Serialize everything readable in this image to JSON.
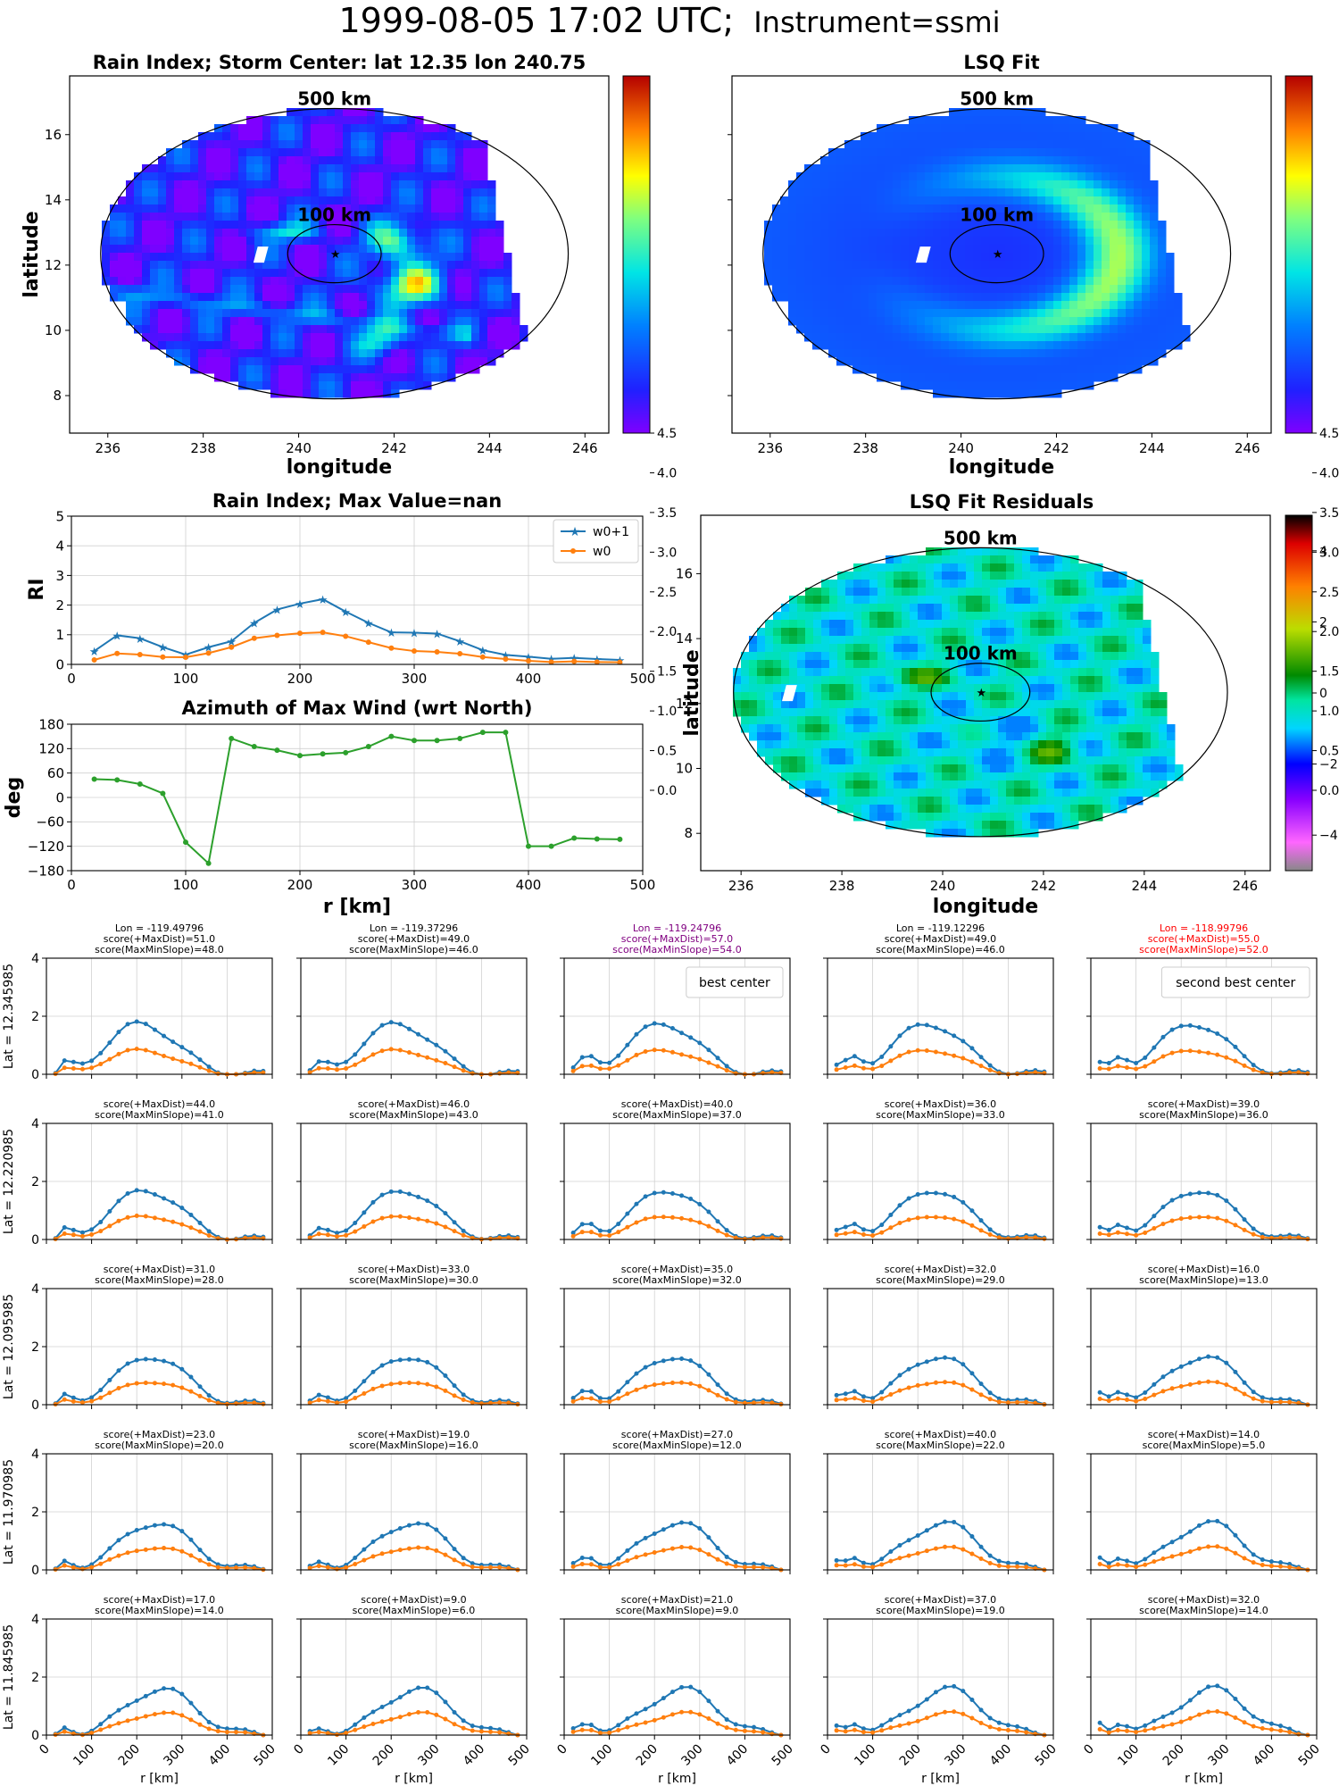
{
  "figure": {
    "title_main": "1999-08-05 17:02 UTC;",
    "title_sub": "Instrument=ssmi"
  },
  "maps": {
    "rain_index": {
      "title": "Rain Index; Storm Center: lat 12.35 lon 240.75",
      "xlabel": "longitude",
      "ylabel": "latitude",
      "show_yticklabels": true,
      "circle_labels": [
        "500 km",
        "100 km"
      ],
      "xticks": [
        "236",
        "238",
        "240",
        "242",
        "244",
        "246"
      ],
      "yticks": [
        "8",
        "10",
        "12",
        "14",
        "16"
      ],
      "colorbar_ticks": [
        "0.0",
        "0.5",
        "1.0",
        "1.5",
        "2.0",
        "2.5",
        "3.0",
        "3.5",
        "4.0",
        "4.5"
      ],
      "colormap": "jet",
      "storm_center": {
        "lon": 240.75,
        "lat": 12.35
      }
    },
    "lsq_fit": {
      "title": "LSQ Fit",
      "xlabel": "longitude",
      "ylabel": "",
      "show_yticklabels": false,
      "circle_labels": [
        "500 km",
        "100 km"
      ],
      "xticks": [
        "236",
        "238",
        "240",
        "242",
        "244",
        "246"
      ],
      "colorbar_ticks": [
        "0.0",
        "0.5",
        "1.0",
        "1.5",
        "2.0",
        "2.5",
        "3.0",
        "3.5",
        "4.0",
        "4.5"
      ],
      "colormap": "jet"
    },
    "residuals": {
      "title": "LSQ Fit Residuals",
      "xlabel": "longitude",
      "ylabel": "latitude",
      "circle_labels": [
        "500 km",
        "100 km"
      ],
      "xticks": [
        "236",
        "238",
        "240",
        "242",
        "244",
        "246"
      ],
      "yticks": [
        "8",
        "10",
        "12",
        "14",
        "16"
      ],
      "colorbar_ticks": [
        "4",
        "2",
        "0",
        "−2",
        "−4"
      ],
      "colormap": "diverging"
    }
  },
  "chart_data": [
    {
      "type": "line",
      "title": "Rain Index; Max Value=nan",
      "ylabel": "RI",
      "xlabel": "",
      "xlim": [
        0,
        500
      ],
      "ylim": [
        0,
        5
      ],
      "grid": true,
      "legend_position": "top-right",
      "xticks": [
        "0",
        "100",
        "200",
        "300",
        "400",
        "500"
      ],
      "yticks": [
        "0",
        "1",
        "2",
        "3",
        "4",
        "5"
      ],
      "x": [
        20,
        40,
        60,
        80,
        100,
        120,
        140,
        160,
        180,
        200,
        220,
        240,
        260,
        280,
        300,
        320,
        340,
        360,
        380,
        400,
        420,
        440,
        460,
        480
      ],
      "series": [
        {
          "name": "w0+1",
          "color": "#1f77b4",
          "marker": "star",
          "values": [
            0.45,
            0.98,
            0.88,
            0.58,
            0.33,
            0.58,
            0.78,
            1.4,
            1.85,
            2.05,
            2.2,
            1.78,
            1.4,
            1.08,
            1.07,
            1.04,
            0.78,
            0.48,
            0.32,
            0.26,
            0.19,
            0.22,
            0.18,
            0.15
          ]
        },
        {
          "name": "w0",
          "color": "#ff7f0e",
          "marker": "dot",
          "values": [
            0.15,
            0.37,
            0.33,
            0.25,
            0.24,
            0.38,
            0.58,
            0.88,
            0.98,
            1.05,
            1.08,
            0.95,
            0.75,
            0.55,
            0.45,
            0.42,
            0.36,
            0.25,
            0.18,
            0.12,
            0.08,
            0.1,
            0.08,
            0.07
          ]
        }
      ]
    },
    {
      "type": "line",
      "title": "Azimuth of Max Wind (wrt North)",
      "ylabel": "deg",
      "xlabel": "r [km]",
      "xlim": [
        0,
        500
      ],
      "ylim": [
        -180,
        180
      ],
      "grid": true,
      "xticks": [
        "0",
        "100",
        "200",
        "300",
        "400",
        "500"
      ],
      "yticks": [
        "−180",
        "−120",
        "−60",
        "0",
        "60",
        "120",
        "180"
      ],
      "x": [
        20,
        40,
        60,
        80,
        100,
        120,
        140,
        160,
        180,
        200,
        220,
        240,
        260,
        280,
        300,
        320,
        340,
        360,
        380,
        400,
        420,
        440,
        460,
        480
      ],
      "series": [
        {
          "color": "#2ca02c",
          "values": [
            45,
            43,
            33,
            10,
            -110,
            -162,
            145,
            125,
            116,
            103,
            107,
            110,
            125,
            150,
            140,
            140,
            145,
            160,
            160,
            -120,
            -120,
            -100,
            -102,
            -103
          ]
        }
      ]
    },
    {
      "type": "line",
      "panel": "score-grid",
      "rows": 5,
      "cols": 5,
      "ylim": [
        0,
        5
      ],
      "xlim": [
        0,
        500
      ],
      "xticks": [
        "0",
        "100",
        "200",
        "300",
        "400",
        "500"
      ],
      "yticks": [
        "0",
        "2",
        "4"
      ],
      "xlabel": "r [km]",
      "row_labels": [
        "Lat = 12.345985",
        "Lat = 12.220985",
        "Lat = 12.095985",
        "Lat = 11.970985",
        "Lat = 11.845985"
      ],
      "subplots": [
        [
          {
            "lines": [
              "Lon = -119.49796",
              "score(+MaxDist)=51.0",
              "score(MaxMinSlope)=48.0"
            ],
            "color": "#000000",
            "legend": "",
            "variant": 0
          },
          {
            "lines": [
              "Lon = -119.37296",
              "score(+MaxDist)=49.0",
              "score(MaxMinSlope)=46.0"
            ],
            "color": "#000000",
            "legend": "",
            "variant": 1
          },
          {
            "lines": [
              "Lon = -119.24796",
              "score(+MaxDist)=57.0",
              "score(MaxMinSlope)=54.0"
            ],
            "color": "#800080",
            "legend": "best center",
            "variant": 2
          },
          {
            "lines": [
              "Lon = -119.12296",
              "score(+MaxDist)=49.0",
              "score(MaxMinSlope)=46.0"
            ],
            "color": "#000000",
            "legend": "",
            "variant": 3
          },
          {
            "lines": [
              "Lon = -118.99796",
              "score(+MaxDist)=55.0",
              "score(MaxMinSlope)=52.0"
            ],
            "color": "#ff0000",
            "legend": "second best center",
            "variant": 4
          }
        ],
        [
          {
            "lines": [
              "score(+MaxDist)=44.0",
              "score(MaxMinSlope)=41.0"
            ],
            "color": "#000000",
            "legend": "",
            "variant": 0
          },
          {
            "lines": [
              "score(+MaxDist)=46.0",
              "score(MaxMinSlope)=43.0"
            ],
            "color": "#000000",
            "legend": "",
            "variant": 1
          },
          {
            "lines": [
              "score(+MaxDist)=40.0",
              "score(MaxMinSlope)=37.0"
            ],
            "color": "#000000",
            "legend": "",
            "variant": 2
          },
          {
            "lines": [
              "score(+MaxDist)=36.0",
              "score(MaxMinSlope)=33.0"
            ],
            "color": "#000000",
            "legend": "",
            "variant": 3
          },
          {
            "lines": [
              "score(+MaxDist)=39.0",
              "score(MaxMinSlope)=36.0"
            ],
            "color": "#000000",
            "legend": "",
            "variant": 4
          }
        ],
        [
          {
            "lines": [
              "score(+MaxDist)=31.0",
              "score(MaxMinSlope)=28.0"
            ],
            "color": "#000000",
            "legend": "",
            "variant": 0
          },
          {
            "lines": [
              "score(+MaxDist)=33.0",
              "score(MaxMinSlope)=30.0"
            ],
            "color": "#000000",
            "legend": "",
            "variant": 1
          },
          {
            "lines": [
              "score(+MaxDist)=35.0",
              "score(MaxMinSlope)=32.0"
            ],
            "color": "#000000",
            "legend": "",
            "variant": 2
          },
          {
            "lines": [
              "score(+MaxDist)=32.0",
              "score(MaxMinSlope)=29.0"
            ],
            "color": "#000000",
            "legend": "",
            "variant": 3
          },
          {
            "lines": [
              "score(+MaxDist)=16.0",
              "score(MaxMinSlope)=13.0"
            ],
            "color": "#000000",
            "legend": "",
            "variant": 4
          }
        ],
        [
          {
            "lines": [
              "score(+MaxDist)=23.0",
              "score(MaxMinSlope)=20.0"
            ],
            "color": "#000000",
            "legend": "",
            "variant": 0
          },
          {
            "lines": [
              "score(+MaxDist)=19.0",
              "score(MaxMinSlope)=16.0"
            ],
            "color": "#000000",
            "legend": "",
            "variant": 1
          },
          {
            "lines": [
              "score(+MaxDist)=27.0",
              "score(MaxMinSlope)=12.0"
            ],
            "color": "#000000",
            "legend": "",
            "variant": 2
          },
          {
            "lines": [
              "score(+MaxDist)=40.0",
              "score(MaxMinSlope)=22.0"
            ],
            "color": "#000000",
            "legend": "",
            "variant": 3
          },
          {
            "lines": [
              "score(+MaxDist)=14.0",
              "score(MaxMinSlope)=5.0"
            ],
            "color": "#000000",
            "legend": "",
            "variant": 4
          }
        ],
        [
          {
            "lines": [
              "score(+MaxDist)=17.0",
              "score(MaxMinSlope)=14.0"
            ],
            "color": "#000000",
            "legend": "",
            "variant": 0
          },
          {
            "lines": [
              "score(+MaxDist)=9.0",
              "score(MaxMinSlope)=6.0"
            ],
            "color": "#000000",
            "legend": "",
            "variant": 1
          },
          {
            "lines": [
              "score(+MaxDist)=21.0",
              "score(MaxMinSlope)=9.0"
            ],
            "color": "#000000",
            "legend": "",
            "variant": 2
          },
          {
            "lines": [
              "score(+MaxDist)=37.0",
              "score(MaxMinSlope)=19.0"
            ],
            "color": "#000000",
            "legend": "",
            "variant": 3
          },
          {
            "lines": [
              "score(+MaxDist)=32.0",
              "score(MaxMinSlope)=14.0"
            ],
            "color": "#000000",
            "legend": "",
            "variant": 4
          }
        ]
      ]
    }
  ]
}
